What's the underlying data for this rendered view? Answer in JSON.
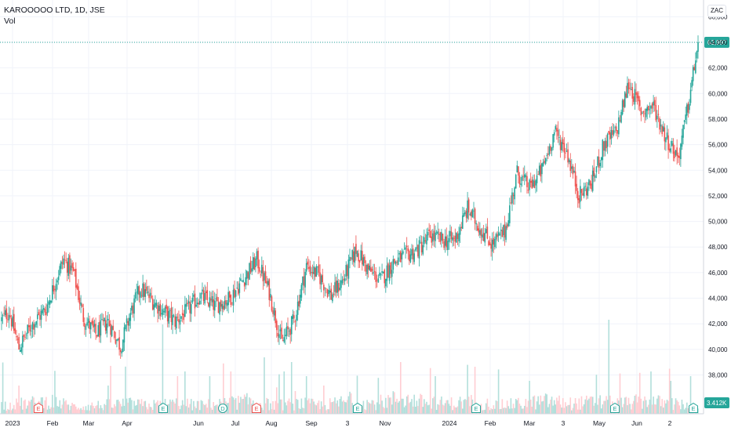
{
  "legend": {
    "symbol": "KAROOOOO LTD, 1D, JSE",
    "volume_label": "Vol"
  },
  "currency": "ZAC",
  "colors": {
    "up": "#26a69a",
    "down": "#ef5350",
    "up_vol": "#b2dfdb",
    "down_vol": "#ffcdd2",
    "grid": "#f0f3fa",
    "last_line": "#26a69a",
    "axis_text": "#131722"
  },
  "chart_data": {
    "type": "candlestick",
    "title": "KAROOOOO LTD, 1D, JSE",
    "ylim": [
      36500,
      67000
    ],
    "y_ticks": [
      38000,
      40000,
      42000,
      44000,
      46000,
      48000,
      50000,
      52000,
      54000,
      56000,
      58000,
      60000,
      62000,
      64000,
      66000
    ],
    "y_tick_labels": [
      "38,000",
      "40,000",
      "42,000",
      "44,000",
      "46,000",
      "48,000",
      "50,000",
      "52,000",
      "54,000",
      "56,000",
      "58,000",
      "60,000",
      "62,000",
      "64,000",
      "66,000"
    ],
    "x_tick_labels": [
      "2023",
      "Feb",
      "Mar",
      "Apr",
      "Jun",
      "Jul",
      "Aug",
      "Sep",
      "3",
      "Nov",
      "2024",
      "Feb",
      "Mar",
      "3",
      "May",
      "Jun",
      "2"
    ],
    "last_price": 63997,
    "last_price_label": "63,997",
    "last_volume_label": "3.412K",
    "event_markers": [
      {
        "type": "E",
        "kind": "down"
      },
      {
        "type": "E",
        "kind": "up"
      },
      {
        "type": "D",
        "kind": "up"
      },
      {
        "type": "E",
        "kind": "down"
      },
      {
        "type": "E",
        "kind": "up"
      },
      {
        "type": "E",
        "kind": "up"
      },
      {
        "type": "E",
        "kind": "up"
      },
      {
        "type": "E",
        "kind": "up"
      }
    ],
    "price_anchors": [
      [
        0,
        42300
      ],
      [
        6,
        43000
      ],
      [
        14,
        40100
      ],
      [
        24,
        41900
      ],
      [
        36,
        43200
      ],
      [
        44,
        45500
      ],
      [
        50,
        47000
      ],
      [
        58,
        46000
      ],
      [
        66,
        42500
      ],
      [
        76,
        41200
      ],
      [
        86,
        42200
      ],
      [
        96,
        40200
      ],
      [
        104,
        42800
      ],
      [
        112,
        44800
      ],
      [
        120,
        44000
      ],
      [
        130,
        43000
      ],
      [
        140,
        42200
      ],
      [
        150,
        43000
      ],
      [
        160,
        44200
      ],
      [
        172,
        43400
      ],
      [
        184,
        44000
      ],
      [
        196,
        45600
      ],
      [
        206,
        47000
      ],
      [
        216,
        44500
      ],
      [
        226,
        40500
      ],
      [
        236,
        42300
      ],
      [
        246,
        46500
      ],
      [
        256,
        45800
      ],
      [
        266,
        44200
      ],
      [
        276,
        45500
      ],
      [
        286,
        47800
      ],
      [
        296,
        46200
      ],
      [
        306,
        45400
      ],
      [
        316,
        46800
      ],
      [
        326,
        47300
      ],
      [
        336,
        47800
      ],
      [
        346,
        48900
      ],
      [
        356,
        48500
      ],
      [
        366,
        48600
      ],
      [
        376,
        51000
      ],
      [
        386,
        49500
      ],
      [
        396,
        48200
      ],
      [
        406,
        49200
      ],
      [
        416,
        53800
      ],
      [
        426,
        52600
      ],
      [
        436,
        54000
      ],
      [
        446,
        57000
      ],
      [
        456,
        55500
      ],
      [
        466,
        52000
      ],
      [
        476,
        53000
      ],
      [
        486,
        56000
      ],
      [
        496,
        57000
      ],
      [
        506,
        60800
      ],
      [
        516,
        58600
      ],
      [
        526,
        59000
      ],
      [
        536,
        56600
      ],
      [
        546,
        55000
      ],
      [
        554,
        59000
      ],
      [
        562,
        63997
      ]
    ],
    "volume_anchors": [
      [
        0,
        0.1
      ],
      [
        20,
        0.12
      ],
      [
        40,
        0.15
      ],
      [
        60,
        0.08
      ],
      [
        80,
        0.1
      ],
      [
        100,
        0.12
      ],
      [
        120,
        0.1
      ],
      [
        140,
        0.12
      ],
      [
        160,
        0.1
      ],
      [
        180,
        0.12
      ],
      [
        200,
        0.15
      ],
      [
        220,
        0.1
      ],
      [
        240,
        0.12
      ],
      [
        260,
        0.1
      ],
      [
        280,
        0.15
      ],
      [
        300,
        0.12
      ],
      [
        320,
        0.18
      ],
      [
        340,
        0.14
      ],
      [
        360,
        0.12
      ],
      [
        380,
        0.14
      ],
      [
        400,
        0.1
      ],
      [
        420,
        0.12
      ],
      [
        440,
        0.15
      ],
      [
        460,
        0.12
      ],
      [
        480,
        0.14
      ],
      [
        500,
        0.12
      ],
      [
        520,
        0.15
      ],
      [
        540,
        0.12
      ],
      [
        562,
        0.08
      ]
    ],
    "volume_spikes": [
      [
        14,
        0.3
      ],
      [
        86,
        0.3
      ],
      [
        130,
        0.95
      ],
      [
        142,
        0.4
      ],
      [
        148,
        0.45
      ],
      [
        168,
        0.4
      ],
      [
        212,
        0.6
      ],
      [
        228,
        0.45
      ],
      [
        234,
        0.55
      ],
      [
        246,
        0.4
      ],
      [
        260,
        0.3
      ],
      [
        322,
        0.55
      ],
      [
        350,
        0.4
      ],
      [
        382,
        0.5
      ],
      [
        426,
        0.35
      ],
      [
        490,
        1.0
      ],
      [
        524,
        0.45
      ],
      [
        540,
        0.35
      ],
      [
        556,
        0.4
      ]
    ]
  }
}
